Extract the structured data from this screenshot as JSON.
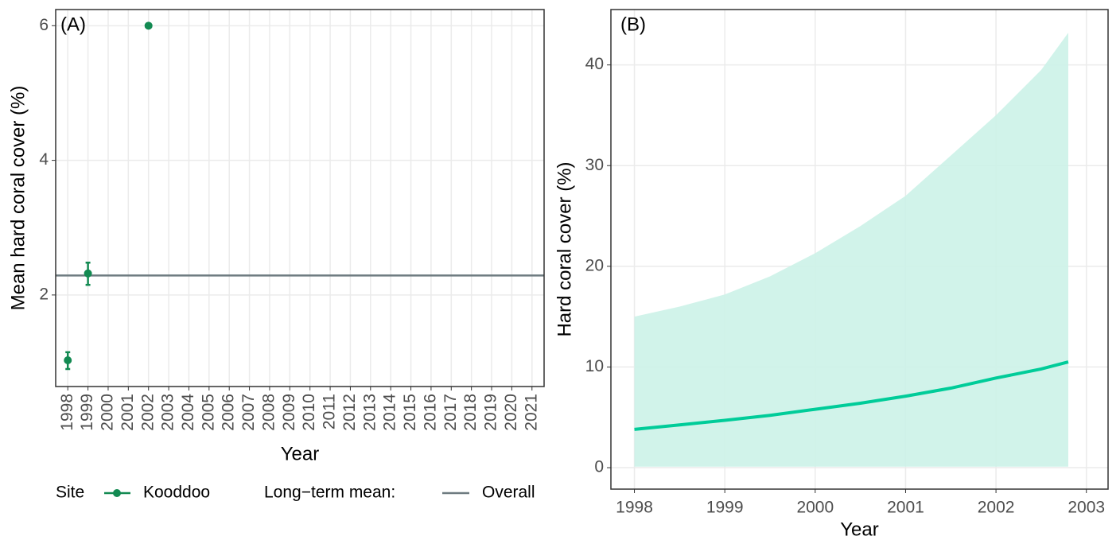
{
  "chart_data": [
    {
      "type": "errorpoint",
      "panel_label": "(A)",
      "x_label": "Year",
      "y_label": "Mean hard coral cover (%)",
      "categories": [
        "1998",
        "1999",
        "2000",
        "2001",
        "2002",
        "2003",
        "2004",
        "2005",
        "2006",
        "2007",
        "2008",
        "2009",
        "2010",
        "2011",
        "2012",
        "2013",
        "2014",
        "2015",
        "2016",
        "2017",
        "2018",
        "2019",
        "2020",
        "2021"
      ],
      "series": [
        {
          "name": "Kooddoo",
          "color": "#138a52",
          "values": [
            1.03,
            2.32,
            null,
            null,
            6.0,
            null,
            null,
            null,
            null,
            null,
            null,
            null,
            null,
            null,
            null,
            null,
            null,
            null,
            null,
            null,
            null,
            null,
            null,
            null
          ],
          "lower": [
            0.9,
            2.15,
            null,
            null,
            null,
            null,
            null,
            null,
            null,
            null,
            null,
            null,
            null,
            null,
            null,
            null,
            null,
            null,
            null,
            null,
            null,
            null,
            null,
            null
          ],
          "upper": [
            1.15,
            2.48,
            null,
            null,
            null,
            null,
            null,
            null,
            null,
            null,
            null,
            null,
            null,
            null,
            null,
            null,
            null,
            null,
            null,
            null,
            null,
            null,
            null,
            null
          ]
        }
      ],
      "legend_title": "Site",
      "hline": {
        "legend_title": "Long−term mean:",
        "name": "Overall",
        "value": 2.29,
        "color": "#6e7b80"
      },
      "ylim": [
        0.64,
        6.24
      ],
      "yticks": [
        2,
        4,
        6
      ],
      "grid": true
    },
    {
      "type": "ribbonline",
      "panel_label": "(B)",
      "x_label": "Year",
      "y_label": "Hard coral cover (%)",
      "x": [
        1998,
        1998.5,
        1999,
        1999.5,
        2000,
        2000.5,
        2001,
        2001.5,
        2002,
        2002.5,
        2002.8
      ],
      "series": [
        {
          "color": "#00cc99",
          "ribbon_color": "#ccf2e8",
          "values": [
            3.8,
            4.25,
            4.7,
            5.2,
            5.8,
            6.4,
            7.1,
            7.9,
            8.9,
            9.8,
            10.5
          ],
          "lower": [
            0.1,
            0.1,
            0.1,
            0.1,
            0.1,
            0.1,
            0.1,
            0.1,
            0.1,
            0.1,
            0.1
          ],
          "upper": [
            15,
            16,
            17.2,
            19,
            21.3,
            24,
            27,
            31,
            35,
            39.5,
            43.2
          ]
        }
      ],
      "xlim": [
        1997.74,
        2003.24
      ],
      "xticks": [
        1998,
        1999,
        2000,
        2001,
        2002,
        2003
      ],
      "ylim": [
        -2.13,
        45.5
      ],
      "yticks": [
        0,
        10,
        20,
        30,
        40
      ],
      "grid": true
    }
  ]
}
